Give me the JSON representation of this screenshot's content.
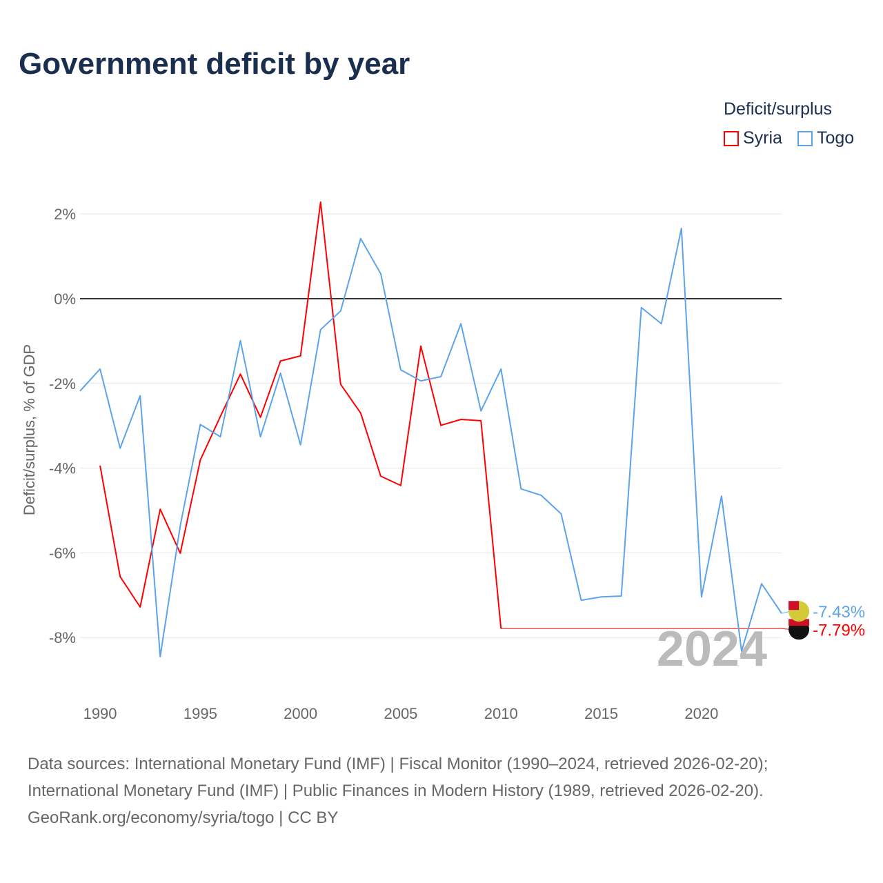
{
  "title": "Government deficit by year",
  "legend": {
    "title": "Deficit/surplus",
    "items": [
      {
        "label": "Syria",
        "color": "#ff0000"
      },
      {
        "label": "Togo",
        "color": "#5ba3ea"
      }
    ]
  },
  "footer": [
    "Data sources: International Monetary Fund (IMF) | Fiscal Monitor (1990–2024, retrieved 2026-02-20);",
    "International Monetary Fund (IMF) | Public Finances in Modern History (1989, retrieved 2026-02-20).",
    "GeoRank.org/economy/syria/togo | CC BY"
  ],
  "chart_data": {
    "type": "line",
    "title": "Government deficit by year",
    "xlabel": "",
    "ylabel": "Deficit/surplus, % of GDP",
    "xlim": [
      1989,
      2024
    ],
    "ylim": [
      -10,
      3
    ],
    "x_ticks": [
      "1990",
      "1995",
      "2000",
      "2005",
      "2010",
      "2015",
      "2020"
    ],
    "y_ticks": [
      {
        "v": 2,
        "label": "2%"
      },
      {
        "v": 0,
        "label": "0%"
      },
      {
        "v": -2,
        "label": "-2%"
      },
      {
        "v": -4,
        "label": "-4%"
      },
      {
        "v": -6,
        "label": "-6%"
      },
      {
        "v": -8,
        "label": "-8%"
      }
    ],
    "year_watermark": "2024",
    "series": [
      {
        "name": "Syria",
        "color": "#ff0000",
        "end_label": "-7.79%",
        "x": [
          1990,
          1991,
          1992,
          1993,
          1994,
          1995,
          1996,
          1997,
          1998,
          1999,
          2000,
          2001,
          2002,
          2003,
          2004,
          2005,
          2006,
          2007,
          2008,
          2009,
          2010
        ],
        "values": [
          -3.94,
          -6.56,
          -7.28,
          -4.97,
          -6.01,
          -3.81,
          -2.78,
          -1.78,
          -2.8,
          -1.47,
          -1.35,
          2.28,
          -2.02,
          -2.7,
          -4.19,
          -4.41,
          -1.12,
          -2.99,
          -2.85,
          -2.88,
          -7.79
        ],
        "carried_to": 2024
      },
      {
        "name": "Togo",
        "color": "#5ba3ea",
        "end_label": "-7.43%",
        "x": [
          1989,
          1990,
          1991,
          1992,
          1993,
          1994,
          1995,
          1996,
          1997,
          1998,
          1999,
          2000,
          2001,
          2002,
          2003,
          2004,
          2005,
          2006,
          2007,
          2008,
          2009,
          2010,
          2011,
          2012,
          2013,
          2014,
          2015,
          2016,
          2017,
          2018,
          2019,
          2020,
          2021,
          2022,
          2023,
          2024
        ],
        "values": [
          -2.18,
          -1.66,
          -3.53,
          -2.29,
          -8.45,
          -5.36,
          -2.97,
          -3.26,
          -0.99,
          -3.26,
          -1.76,
          -3.45,
          -0.73,
          -0.29,
          1.42,
          0.59,
          -1.68,
          -1.94,
          -1.84,
          -0.59,
          -2.65,
          -1.66,
          -4.49,
          -4.64,
          -5.08,
          -7.12,
          -7.04,
          -7.02,
          -0.21,
          -0.59,
          1.66,
          -7.04,
          -4.66,
          -8.32,
          -6.73,
          -7.43
        ]
      }
    ]
  }
}
